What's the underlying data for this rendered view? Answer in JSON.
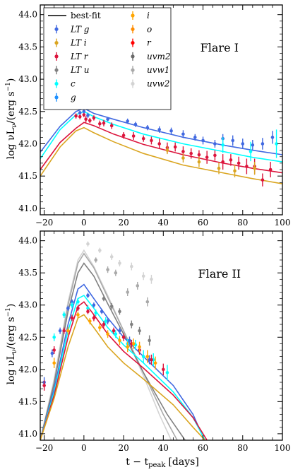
{
  "figure": {
    "xlabel": "t − t",
    "xlabel_sub": "peak",
    "xlabel_unit": "[days]",
    "ylabel_main": "log νL",
    "ylabel_sub": "ν",
    "ylabel_unit": "/(erg s",
    "ylabel_exp": "−1",
    "ylabel_close": ")"
  },
  "chart_data": [
    {
      "type": "line",
      "title": "Flare I",
      "xlim": [
        -22,
        100
      ],
      "ylim": [
        40.9,
        44.15
      ],
      "xticks": [
        -20,
        0,
        20,
        40,
        60,
        80,
        100
      ],
      "yticks": [
        41.0,
        41.5,
        42.0,
        42.5,
        43.0,
        43.5,
        44.0
      ],
      "legend": {
        "placement": "top-left",
        "columns": [
          [
            {
              "label": "best-fit",
              "color": "#000000",
              "kind": "line"
            },
            {
              "label": "LT g",
              "color": "#4169e1",
              "kind": "point"
            },
            {
              "label": "LT i",
              "color": "#daa520",
              "kind": "point"
            },
            {
              "label": "LT r",
              "color": "#dc143c",
              "kind": "point"
            },
            {
              "label": "LT u",
              "color": "#808080",
              "kind": "point"
            },
            {
              "label": "c",
              "color": "#00ffff",
              "kind": "point"
            },
            {
              "label": "g",
              "color": "#1e90ff",
              "kind": "point"
            }
          ],
          [
            {
              "label": "i",
              "color": "#ffa500",
              "kind": "point"
            },
            {
              "label": "o",
              "color": "#ff8c00",
              "kind": "point"
            },
            {
              "label": "r",
              "color": "#ff0000",
              "kind": "point"
            },
            {
              "label": "uvm2",
              "color": "#696969",
              "kind": "point"
            },
            {
              "label": "uvw1",
              "color": "#a9a9a9",
              "kind": "point"
            },
            {
              "label": "uvw2",
              "color": "#d3d3d3",
              "kind": "point"
            }
          ]
        ]
      },
      "series": [
        {
          "band": "g",
          "color": "#4169e1",
          "x": [
            -22,
            -12,
            -4,
            0,
            5,
            15,
            30,
            50,
            70,
            85,
            100
          ],
          "y": [
            41.87,
            42.27,
            42.5,
            42.55,
            42.47,
            42.38,
            42.25,
            42.1,
            41.98,
            41.9,
            41.83
          ]
        },
        {
          "band": "c",
          "color": "#00ffff",
          "x": [
            -22,
            -12,
            -4,
            0,
            5,
            15,
            30,
            50,
            70,
            85,
            100
          ],
          "y": [
            41.77,
            42.22,
            42.45,
            42.5,
            42.42,
            42.3,
            42.15,
            42.0,
            41.88,
            41.79,
            41.72
          ]
        },
        {
          "band": "r",
          "color": "#dc143c",
          "x": [
            -22,
            -12,
            -4,
            0,
            5,
            15,
            30,
            50,
            70,
            85,
            100
          ],
          "y": [
            41.6,
            42.02,
            42.24,
            42.33,
            42.28,
            42.15,
            41.99,
            41.83,
            41.7,
            41.62,
            41.55
          ]
        },
        {
          "band": "i",
          "color": "#daa520",
          "x": [
            -22,
            -12,
            -4,
            0,
            5,
            15,
            30,
            50,
            70,
            85,
            100
          ],
          "y": [
            41.5,
            41.95,
            42.2,
            42.25,
            42.17,
            42.03,
            41.85,
            41.67,
            41.55,
            41.46,
            41.38
          ]
        }
      ],
      "points": [
        {
          "color": "#dc143c",
          "x": [
            -4,
            -2,
            0,
            1,
            3,
            5,
            8,
            10,
            14,
            20,
            25,
            30,
            34,
            38,
            42,
            46,
            50,
            54,
            58,
            62,
            66,
            70,
            74,
            78,
            82,
            86,
            90,
            94
          ],
          "y": [
            42.43,
            42.42,
            42.45,
            42.38,
            42.36,
            42.4,
            42.31,
            42.32,
            42.28,
            42.13,
            42.12,
            42.08,
            42.05,
            42.0,
            41.94,
            41.95,
            41.88,
            41.85,
            41.83,
            41.79,
            41.82,
            41.72,
            41.75,
            41.7,
            41.65,
            41.65,
            41.44,
            41.6
          ],
          "err": [
            0.04,
            0.04,
            0.04,
            0.05,
            0.04,
            0.04,
            0.05,
            0.05,
            0.05,
            0.05,
            0.06,
            0.05,
            0.06,
            0.08,
            0.08,
            0.07,
            0.08,
            0.08,
            0.07,
            0.1,
            0.08,
            0.12,
            0.09,
            0.1,
            0.12,
            0.12,
            0.1,
            0.12
          ]
        },
        {
          "color": "#4169e1",
          "x": [
            -2,
            0,
            2,
            12,
            22,
            26,
            32,
            38,
            44,
            50,
            56,
            60,
            66,
            70,
            75,
            80,
            85,
            90,
            95
          ],
          "y": [
            42.48,
            42.5,
            42.44,
            42.38,
            42.35,
            42.3,
            42.25,
            42.22,
            42.2,
            42.15,
            42.1,
            42.05,
            42.0,
            42.08,
            42.05,
            42.0,
            41.98,
            42.0,
            42.1
          ],
          "err": [
            0.03,
            0.03,
            0.04,
            0.03,
            0.04,
            0.04,
            0.04,
            0.05,
            0.05,
            0.06,
            0.05,
            0.06,
            0.06,
            0.07,
            0.08,
            0.08,
            0.08,
            0.09,
            0.1
          ]
        },
        {
          "color": "#daa520",
          "x": [
            42,
            50,
            58,
            68,
            76,
            86
          ],
          "y": [
            41.9,
            41.78,
            41.72,
            41.62,
            41.58,
            41.62
          ],
          "err": [
            0.06,
            0.07,
            0.08,
            0.09,
            0.1,
            0.1
          ]
        },
        {
          "color": "#00ffff",
          "x": [
            70,
            84,
            97
          ],
          "y": [
            41.98,
            41.88,
            42.0
          ],
          "err": [
            0.12,
            0.15,
            0.22
          ]
        }
      ]
    },
    {
      "type": "line",
      "title": "Flare II",
      "xlim": [
        -22,
        100
      ],
      "ylim": [
        40.9,
        44.15
      ],
      "xticks": [
        -20,
        0,
        20,
        40,
        60,
        80,
        100
      ],
      "yticks": [
        41.0,
        41.5,
        42.0,
        42.5,
        43.0,
        43.5,
        44.0
      ],
      "series": [
        {
          "band": "uvw2",
          "color": "#d3d3d3",
          "x": [
            -22,
            -15,
            -8,
            -3,
            0,
            5,
            12,
            20,
            30,
            38,
            44
          ],
          "y": [
            40.9,
            41.85,
            43.05,
            43.7,
            43.85,
            43.6,
            43.15,
            42.6,
            41.9,
            41.3,
            40.9
          ]
        },
        {
          "band": "uvw1",
          "color": "#a9a9a9",
          "x": [
            -22,
            -15,
            -8,
            -3,
            0,
            5,
            12,
            20,
            30,
            40,
            47
          ],
          "y": [
            40.9,
            41.8,
            43.0,
            43.65,
            43.8,
            43.58,
            43.12,
            42.6,
            41.95,
            41.3,
            40.9
          ]
        },
        {
          "band": "uvm2",
          "color": "#808080",
          "x": [
            -22,
            -15,
            -8,
            -3,
            0,
            5,
            12,
            20,
            30,
            42,
            51
          ],
          "y": [
            40.9,
            41.78,
            42.9,
            43.5,
            43.65,
            43.45,
            43.02,
            42.55,
            41.95,
            41.3,
            40.9
          ]
        },
        {
          "band": "g",
          "color": "#4169e1",
          "x": [
            -22,
            -15,
            -8,
            -3,
            0,
            5,
            12,
            20,
            30,
            45,
            55,
            60
          ],
          "y": [
            40.9,
            41.7,
            42.7,
            43.25,
            43.32,
            43.1,
            42.8,
            42.5,
            42.2,
            41.75,
            41.3,
            40.95
          ]
        },
        {
          "band": "c",
          "color": "#00ffff",
          "x": [
            -22,
            -15,
            -8,
            -3,
            0,
            5,
            12,
            20,
            30,
            45,
            55,
            61
          ],
          "y": [
            40.9,
            41.65,
            42.6,
            43.1,
            43.15,
            42.95,
            42.65,
            42.38,
            42.1,
            41.65,
            41.25,
            40.9
          ]
        },
        {
          "band": "r",
          "color": "#dc143c",
          "x": [
            -22,
            -15,
            -8,
            -3,
            0,
            5,
            12,
            20,
            30,
            45,
            55,
            62
          ],
          "y": [
            40.9,
            41.6,
            42.5,
            42.98,
            43.05,
            42.85,
            42.55,
            42.28,
            42.02,
            41.6,
            41.25,
            40.9
          ]
        },
        {
          "band": "i",
          "color": "#daa520",
          "x": [
            -22,
            -15,
            -8,
            -3,
            0,
            5,
            12,
            20,
            30,
            45,
            55,
            61
          ],
          "y": [
            40.9,
            41.55,
            42.35,
            42.8,
            42.85,
            42.65,
            42.35,
            42.1,
            41.85,
            41.45,
            41.1,
            40.9
          ]
        }
      ],
      "points": [
        {
          "color": "#d3d3d3",
          "x": [
            2,
            8,
            14,
            18,
            24,
            30,
            34
          ],
          "y": [
            43.95,
            43.85,
            43.75,
            43.65,
            43.6,
            43.45,
            43.4
          ],
          "err": [
            0.04,
            0.04,
            0.05,
            0.05,
            0.06,
            0.06,
            0.07
          ]
        },
        {
          "color": "#a9a9a9",
          "x": [
            6,
            12,
            16,
            22,
            27,
            32
          ],
          "y": [
            43.7,
            43.55,
            43.5,
            43.2,
            43.3,
            43.05
          ],
          "err": [
            0.04,
            0.05,
            0.05,
            0.06,
            0.06,
            0.07
          ]
        },
        {
          "color": "#808080",
          "x": [
            10,
            14,
            18,
            24,
            28,
            33
          ],
          "y": [
            43.1,
            42.98,
            42.9,
            42.7,
            42.6,
            42.45
          ],
          "err": [
            0.04,
            0.05,
            0.05,
            0.06,
            0.06,
            0.08
          ]
        },
        {
          "color": "#4169e1",
          "x": [
            -20,
            -16,
            -12,
            -8,
            -6,
            2,
            5,
            9,
            12,
            18,
            23,
            28,
            33
          ],
          "y": [
            41.8,
            42.25,
            42.6,
            42.95,
            43.05,
            43.15,
            43.0,
            42.9,
            42.75,
            42.6,
            42.45,
            42.3,
            42.15
          ],
          "err": [
            0.08,
            0.06,
            0.05,
            0.04,
            0.04,
            0.04,
            0.04,
            0.04,
            0.05,
            0.05,
            0.06,
            0.06,
            0.07
          ]
        },
        {
          "color": "#00ffff",
          "x": [
            -15,
            -10,
            -6,
            -3,
            2,
            6,
            11,
            16,
            22,
            26,
            30,
            35,
            42
          ],
          "y": [
            42.5,
            42.85,
            43.0,
            43.05,
            42.95,
            42.88,
            42.75,
            42.55,
            42.4,
            42.38,
            42.2,
            42.15,
            41.95
          ],
          "err": [
            0.06,
            0.05,
            0.05,
            0.05,
            0.05,
            0.05,
            0.06,
            0.06,
            0.07,
            0.08,
            0.1,
            0.1,
            0.12
          ]
        },
        {
          "color": "#dc143c",
          "x": [
            -20,
            -15,
            -10,
            -6,
            -3,
            2,
            5,
            10,
            15,
            20,
            24,
            28,
            34,
            40
          ],
          "y": [
            41.75,
            42.3,
            42.6,
            42.8,
            42.95,
            42.9,
            42.8,
            42.7,
            42.6,
            42.5,
            42.4,
            42.3,
            42.15,
            42.0
          ],
          "err": [
            0.08,
            0.06,
            0.05,
            0.05,
            0.04,
            0.04,
            0.05,
            0.05,
            0.05,
            0.06,
            0.06,
            0.07,
            0.08,
            0.09
          ]
        },
        {
          "color": "#ffa500",
          "x": [
            -15,
            -8,
            -3,
            3,
            8,
            12,
            18,
            22,
            25,
            28,
            32,
            36
          ],
          "y": [
            42.1,
            42.6,
            42.85,
            42.75,
            42.65,
            42.55,
            42.45,
            42.35,
            42.4,
            42.35,
            42.2,
            42.1
          ],
          "err": [
            0.08,
            0.06,
            0.05,
            0.05,
            0.06,
            0.06,
            0.07,
            0.08,
            0.08,
            0.08,
            0.1,
            0.1
          ]
        }
      ]
    }
  ]
}
